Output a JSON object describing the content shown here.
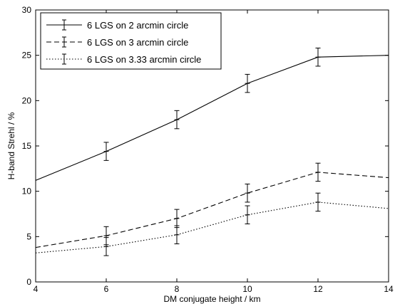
{
  "chart_data": {
    "type": "line",
    "title": "",
    "xlabel": "DM conjugate height / km",
    "ylabel": "H-band Strehl / %",
    "xlim": [
      4,
      14
    ],
    "ylim": [
      0,
      30
    ],
    "xticks": [
      4,
      6,
      8,
      10,
      12,
      14
    ],
    "yticks": [
      0,
      5,
      10,
      15,
      20,
      25,
      30
    ],
    "grid": false,
    "legend_position": "top-left",
    "series": [
      {
        "name": "6 LGS on 2 arcmin circle",
        "line_style": "solid",
        "color": "#000000",
        "x": [
          4,
          6,
          8,
          10,
          12,
          14
        ],
        "y": [
          11.2,
          14.4,
          17.9,
          21.9,
          24.8,
          25.0
        ],
        "error": [
          null,
          1.0,
          1.0,
          1.0,
          1.0,
          null
        ]
      },
      {
        "name": "6 LGS on 3 arcmin circle",
        "line_style": "dashed",
        "color": "#000000",
        "x": [
          4,
          6,
          8,
          10,
          12,
          14
        ],
        "y": [
          3.8,
          5.1,
          7.0,
          9.8,
          12.1,
          11.5
        ],
        "error": [
          null,
          1.0,
          1.0,
          1.0,
          1.0,
          null
        ]
      },
      {
        "name": "6 LGS on 3.33 arcmin circle",
        "line_style": "dotted",
        "color": "#000000",
        "x": [
          4,
          6,
          8,
          10,
          12,
          14
        ],
        "y": [
          3.2,
          3.9,
          5.2,
          7.4,
          8.8,
          8.1
        ],
        "error": [
          null,
          1.0,
          1.0,
          1.0,
          1.0,
          null
        ]
      }
    ]
  }
}
